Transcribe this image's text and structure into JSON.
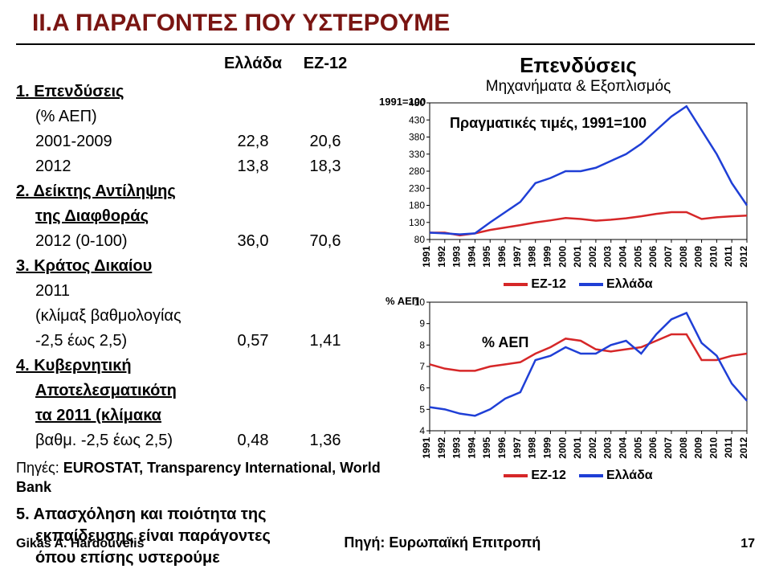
{
  "title": "II.A   ΠΑΡΑΓΟΝΤΕΣ ΠΟΥ ΥΣΤΕΡΟΥΜΕ",
  "table": {
    "header_b": "Ελλάδα",
    "header_c": "ΕΖ-12",
    "item1": {
      "label": "1.  Επενδύσεις",
      "sublabel": "(% ΑΕΠ)",
      "row_a": {
        "label": "2001-2009",
        "b": "22,8",
        "c": "20,6"
      },
      "row_b": {
        "label": "2012",
        "b": "13,8",
        "c": "18,3"
      }
    },
    "item2": {
      "label": "2.  Δείκτης Αντίληψης",
      "sublabel": "της Διαφθοράς",
      "row": {
        "label": "2012 (0-100)",
        "b": "36,0",
        "c": "70,6"
      }
    },
    "item3": {
      "label": "3.  Κράτος Δικαίου",
      "sublabel1": "2011",
      "sublabel2": "(κλίμαξ βαθμολογίας",
      "row": {
        "label": "-2,5 έως 2,5)",
        "b": "0,57",
        "c": "1,41"
      }
    },
    "item4": {
      "label": "4.  Κυβερνητική",
      "sublabel1": "Αποτελεσματικότη",
      "sublabel2": "τα 2011 (κλίμακα",
      "row": {
        "label": "βαθμ. -2,5 έως 2,5)",
        "b": "0,48",
        "c": "1,36"
      }
    },
    "sources": {
      "prefix": "Πηγές:",
      "text": "EUROSTAT, Transparency International, World Bank"
    },
    "item5": {
      "label": "5.  Απασχόληση",
      "rest1": " και ποιότητα της",
      "rest2": "εκπαίδευσης είναι παράγοντες",
      "rest3": "όπου επίσης υστερούμε"
    }
  },
  "chart1": {
    "title": "Επενδύσεις",
    "subtitle": "Μηχανήματα & Εξοπλισμός",
    "y_label": "1991=100",
    "note": "Πραγματικές τιμές, 1991=100",
    "y_ticks": [
      80,
      130,
      180,
      230,
      280,
      330,
      380,
      430,
      480
    ],
    "x_labels": [
      "1991",
      "1992",
      "1993",
      "1994",
      "1995",
      "1996",
      "1997",
      "1998",
      "1999",
      "2000",
      "2001",
      "2002",
      "2003",
      "2004",
      "2005",
      "2006",
      "2007",
      "2008",
      "2009",
      "2010",
      "2011",
      "2012"
    ],
    "series": {
      "ez12": {
        "color": "#d62728",
        "values": [
          100,
          100,
          92,
          98,
          108,
          115,
          122,
          130,
          136,
          143,
          140,
          135,
          138,
          142,
          148,
          155,
          160,
          160,
          140,
          145,
          148,
          150
        ]
      },
      "ellada": {
        "color": "#1f3fd6",
        "values": [
          100,
          98,
          95,
          98,
          130,
          160,
          190,
          245,
          260,
          280,
          280,
          290,
          310,
          330,
          360,
          400,
          440,
          470,
          400,
          330,
          245,
          180
        ]
      }
    },
    "legend": {
      "a": "ΕΖ-12",
      "b": "Ελλάδα"
    }
  },
  "chart2": {
    "y_label": "% ΑΕΠ",
    "note": "% ΑΕΠ",
    "y_ticks": [
      4,
      5,
      6,
      7,
      8,
      9,
      10
    ],
    "x_labels": [
      "1991",
      "1992",
      "1993",
      "1994",
      "1995",
      "1996",
      "1997",
      "1998",
      "1999",
      "2000",
      "2001",
      "2002",
      "2003",
      "2004",
      "2005",
      "2006",
      "2007",
      "2008",
      "2009",
      "2010",
      "2011",
      "2012"
    ],
    "series": {
      "ez12": {
        "color": "#d62728",
        "values": [
          7.1,
          6.9,
          6.8,
          6.8,
          7.0,
          7.1,
          7.2,
          7.6,
          7.9,
          8.3,
          8.2,
          7.8,
          7.7,
          7.8,
          7.9,
          8.2,
          8.5,
          8.5,
          7.3,
          7.3,
          7.5,
          7.6
        ]
      },
      "ellada": {
        "color": "#1f3fd6",
        "values": [
          5.1,
          5.0,
          4.8,
          4.7,
          5.0,
          5.5,
          5.8,
          7.3,
          7.5,
          7.9,
          7.6,
          7.6,
          8.0,
          8.2,
          7.6,
          8.5,
          9.2,
          9.5,
          8.1,
          7.5,
          6.2,
          5.4
        ]
      }
    },
    "legend": {
      "a": "ΕΖ-12",
      "b": "Ελλάδα"
    }
  },
  "footer": {
    "author": "Gikas A. Hardouvelis",
    "source": "Πηγή: Ευρωπαϊκή Επιτροπή",
    "page": "17"
  },
  "colors": {
    "title": "#7a1512"
  }
}
